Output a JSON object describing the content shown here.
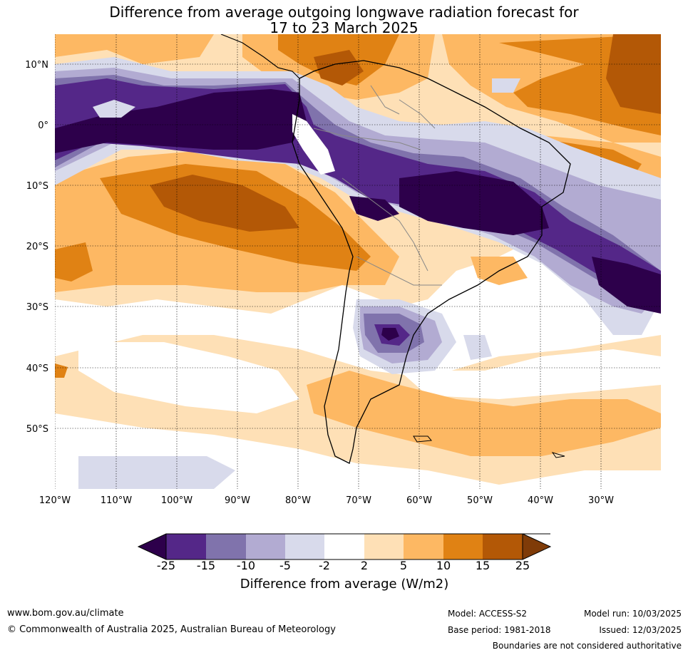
{
  "title_line1": "Difference from average outgoing longwave radiation forecast for",
  "title_line2": "17 to 23 March 2025",
  "lat_labels": [
    "10°N",
    "0°",
    "10°S",
    "20°S",
    "30°S",
    "40°S",
    "50°S"
  ],
  "lon_labels": [
    "120°W",
    "110°W",
    "100°W",
    "90°W",
    "80°W",
    "70°W",
    "60°W",
    "50°W",
    "40°W",
    "30°W"
  ],
  "colorbar": {
    "title": "Difference from average (W/m2)",
    "ticks": [
      "-25",
      "-15",
      "-10",
      "-5",
      "-2",
      "2",
      "5",
      "10",
      "15",
      "25"
    ],
    "colors": [
      "#2d004b",
      "#542788",
      "#8073ac",
      "#b2abd2",
      "#d8daeb",
      "#ffffff",
      "#fee0b6",
      "#fdb863",
      "#e08214",
      "#b35806",
      "#7f3b08"
    ]
  },
  "footer": {
    "website": "www.bom.gov.au/climate",
    "copyright": "© Commonwealth of Australia 2025, Australian Bureau of Meteorology",
    "model": "Model: ACCESS-S2",
    "base_period": "Base period: 1981-2018",
    "model_run": "Model run: 10/03/2025",
    "issued": "Issued: 12/03/2025",
    "boundaries_note": "Boundaries are not considered authoritative"
  }
}
